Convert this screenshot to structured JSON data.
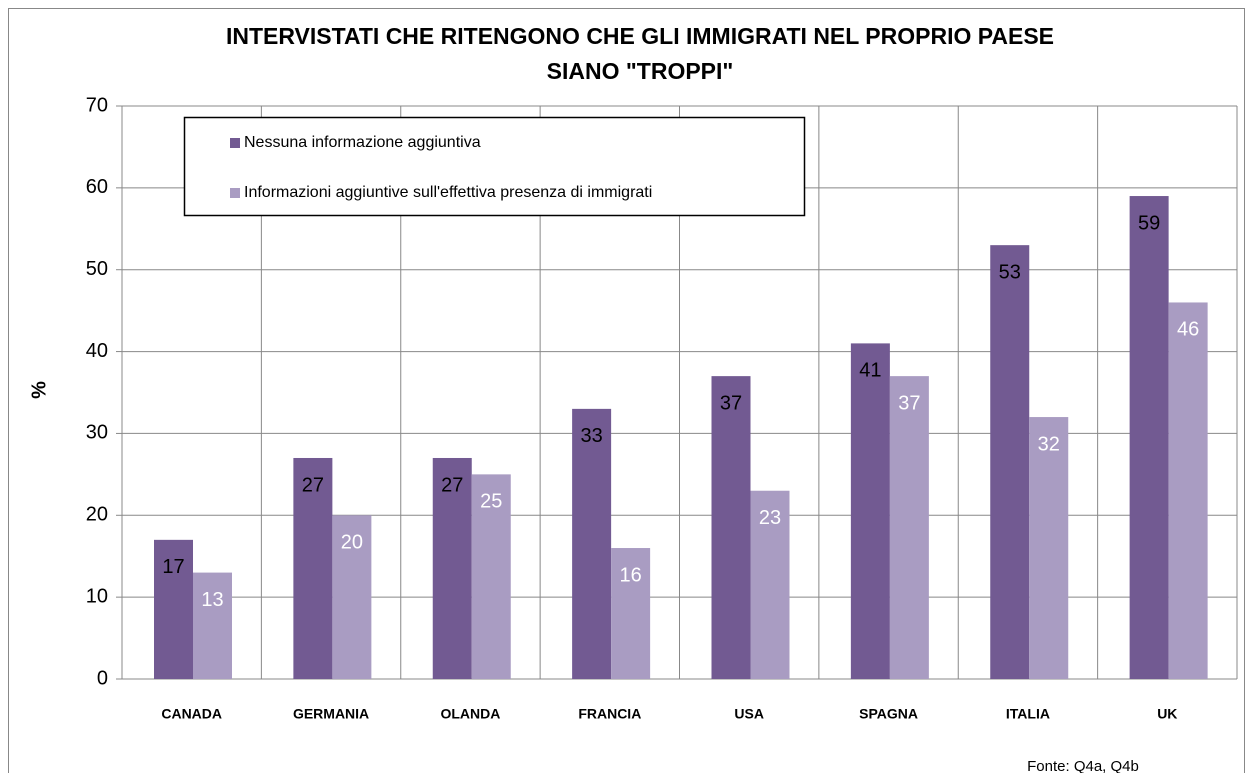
{
  "chart_data": {
    "type": "bar",
    "title": [
      "INTERVISTATI CHE RITENGONO CHE GLI IMMIGRATI NEL PROPRIO PAESE",
      "SIANO \"TROPPI\""
    ],
    "y_label": "%",
    "categories": [
      "CANADA",
      "GERMANIA",
      "OLANDA",
      "FRANCIA",
      "USA",
      "SPAGNA",
      "ITALIA",
      "UK"
    ],
    "series": [
      {
        "name": "Nessuna informazione aggiuntiva",
        "color": "#725a92",
        "label_color": "#000000",
        "values": [
          17,
          27,
          27,
          33,
          37,
          41,
          53,
          59
        ]
      },
      {
        "name": "Informazioni aggiuntive sull'effettiva presenza di immigrati",
        "color": "#a99cc2",
        "label_color": "#ffffff",
        "values": [
          13,
          20,
          25,
          16,
          23,
          37,
          32,
          46
        ]
      }
    ],
    "ylim": [
      0,
      70
    ],
    "yticks": [
      0,
      10,
      20,
      30,
      40,
      50,
      60,
      70
    ],
    "grid": true,
    "legend": "top-left",
    "source": "Fonte: Q4a, Q4b"
  }
}
